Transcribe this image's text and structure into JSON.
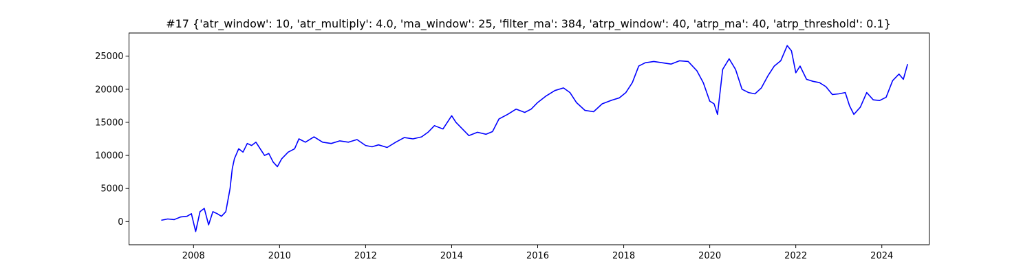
{
  "chart_data": {
    "type": "line",
    "title": "#17 {'atr_window': 10, 'atr_multiply': 4.0, 'ma_window': 25, 'filter_ma': 384, 'atrp_window': 40, 'atrp_ma': 40, 'atrp_threshold': 0.1}",
    "xlabel": "",
    "ylabel": "",
    "xlim": [
      2006.5,
      2025.1
    ],
    "ylim": [
      -3500,
      28500
    ],
    "x_ticks": [
      2008,
      2010,
      2012,
      2014,
      2016,
      2018,
      2020,
      2022,
      2024
    ],
    "x_tick_labels": [
      "2008",
      "2010",
      "2012",
      "2014",
      "2016",
      "2018",
      "2020",
      "2022",
      "2024"
    ],
    "y_ticks": [
      0,
      5000,
      10000,
      15000,
      20000,
      25000
    ],
    "y_tick_labels": [
      "0",
      "5000",
      "10000",
      "15000",
      "20000",
      "25000"
    ],
    "grid": false,
    "series": [
      {
        "color": "#0000ff",
        "x": [
          2007.25,
          2007.4,
          2007.55,
          2007.7,
          2007.85,
          2007.95,
          2008.05,
          2008.15,
          2008.25,
          2008.35,
          2008.45,
          2008.55,
          2008.65,
          2008.75,
          2008.85,
          2008.9,
          2008.95,
          2009.05,
          2009.15,
          2009.25,
          2009.35,
          2009.45,
          2009.55,
          2009.65,
          2009.75,
          2009.85,
          2009.95,
          2010.05,
          2010.2,
          2010.35,
          2010.45,
          2010.6,
          2010.8,
          2011.0,
          2011.2,
          2011.4,
          2011.6,
          2011.8,
          2012.0,
          2012.15,
          2012.3,
          2012.5,
          2012.7,
          2012.9,
          2013.1,
          2013.3,
          2013.45,
          2013.6,
          2013.8,
          2014.0,
          2014.1,
          2014.25,
          2014.4,
          2014.6,
          2014.8,
          2014.95,
          2015.1,
          2015.3,
          2015.5,
          2015.7,
          2015.85,
          2016.0,
          2016.2,
          2016.4,
          2016.6,
          2016.75,
          2016.9,
          2017.1,
          2017.3,
          2017.5,
          2017.7,
          2017.9,
          2018.05,
          2018.2,
          2018.35,
          2018.5,
          2018.7,
          2018.9,
          2019.1,
          2019.3,
          2019.5,
          2019.7,
          2019.85,
          2020.0,
          2020.1,
          2020.18,
          2020.3,
          2020.45,
          2020.6,
          2020.75,
          2020.9,
          2021.05,
          2021.2,
          2021.35,
          2021.5,
          2021.65,
          2021.8,
          2021.9,
          2022.0,
          2022.1,
          2022.25,
          2022.4,
          2022.55,
          2022.7,
          2022.85,
          2023.0,
          2023.15,
          2023.25,
          2023.35,
          2023.5,
          2023.65,
          2023.8,
          2023.95,
          2024.1,
          2024.25,
          2024.4,
          2024.5,
          2024.6
        ],
        "y": [
          200,
          400,
          300,
          700,
          800,
          1200,
          -1500,
          1500,
          2000,
          -500,
          1500,
          1200,
          800,
          1500,
          5000,
          8000,
          9500,
          11000,
          10500,
          11800,
          11500,
          12000,
          11000,
          10000,
          10300,
          9000,
          8300,
          9500,
          10500,
          11000,
          12500,
          12000,
          12800,
          12000,
          11800,
          12200,
          12000,
          12400,
          11500,
          11300,
          11600,
          11200,
          12000,
          12700,
          12500,
          12800,
          13500,
          14500,
          14000,
          16000,
          15000,
          14000,
          13000,
          13500,
          13200,
          13600,
          15500,
          16200,
          17000,
          16500,
          17000,
          18000,
          19000,
          19800,
          20200,
          19500,
          18000,
          16800,
          16600,
          17800,
          18300,
          18700,
          19500,
          21000,
          23500,
          24000,
          24200,
          24000,
          23800,
          24300,
          24200,
          22800,
          21000,
          18200,
          17800,
          16200,
          23000,
          24600,
          23000,
          20000,
          19500,
          19300,
          20200,
          22000,
          23500,
          24300,
          26600,
          25800,
          22500,
          23500,
          21500,
          21200,
          21000,
          20400,
          19200,
          19300,
          19500,
          17500,
          16200,
          17300,
          19500,
          18400,
          18300,
          18800,
          21300,
          22300,
          21500,
          23800
        ]
      }
    ]
  }
}
